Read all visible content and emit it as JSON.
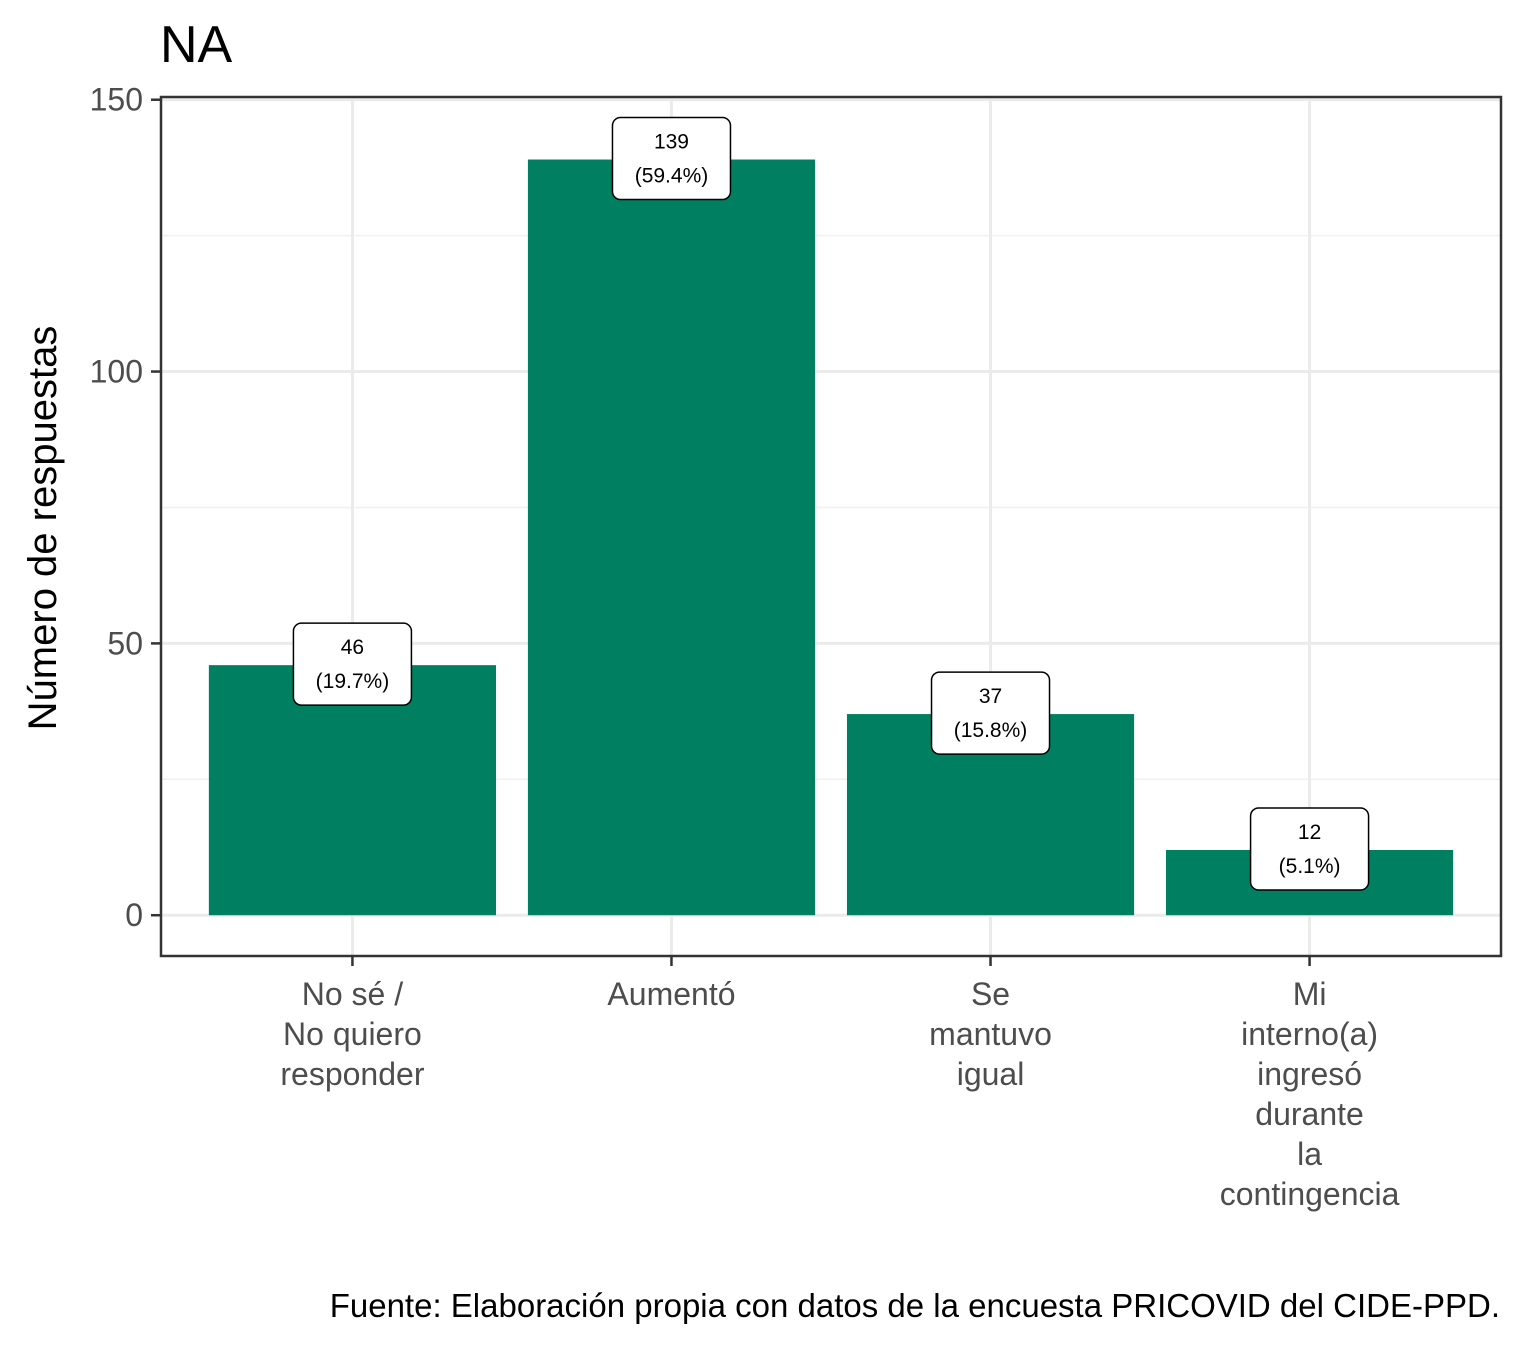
{
  "chart_data": {
    "type": "bar",
    "title": "NA",
    "xlabel": "",
    "ylabel": "Número de respuestas",
    "categories": [
      [
        "No sé /",
        "No quiero",
        "responder"
      ],
      [
        "Aumentó"
      ],
      [
        "Se",
        "mantuvo",
        "igual"
      ],
      [
        "Mi",
        "interno(a)",
        "ingresó",
        "durante",
        "la",
        "contingencia"
      ]
    ],
    "values": [
      46,
      139,
      37,
      12
    ],
    "labels": [
      [
        "46",
        "(19.7%)"
      ],
      [
        "139",
        "(59.4%)"
      ],
      [
        "37",
        "(15.8%)"
      ],
      [
        "12",
        "(5.1%)"
      ]
    ],
    "yticks": [
      0,
      50,
      100,
      150
    ],
    "ylim": [
      -7.5,
      150.5
    ],
    "ytick_labels": [
      "0",
      "50",
      "100",
      "150"
    ],
    "grid": true,
    "bar_color": "#008060",
    "caption": "Fuente: Elaboración propia con datos de la encuesta PRICOVID del CIDE-PPD."
  }
}
